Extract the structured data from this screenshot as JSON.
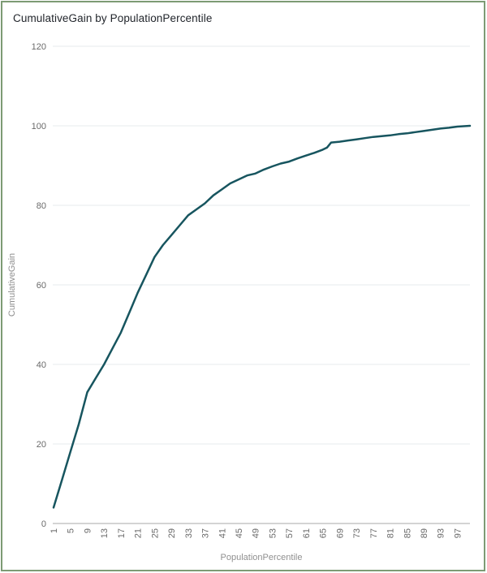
{
  "header": {
    "title": "CumulativeGain by PopulationPercentile"
  },
  "colors": {
    "line": "#17555f",
    "frame_border": "#7d9b74",
    "gridline": "#e7ebee",
    "axis_line": "#a8a8a8",
    "tick_label": "#6a6a6a",
    "axis_title": "#909090",
    "title_text": "#22262c"
  },
  "chart_data": {
    "type": "line",
    "title": "CumulativeGain by PopulationPercentile",
    "xlabel": "PopulationPercentile",
    "ylabel": "CumulativeGain",
    "xlim": [
      1,
      100
    ],
    "ylim": [
      0,
      120
    ],
    "grid": true,
    "legend": "none",
    "x_ticks": [
      1,
      5,
      9,
      13,
      17,
      21,
      25,
      29,
      33,
      37,
      41,
      45,
      49,
      53,
      57,
      61,
      65,
      69,
      73,
      77,
      81,
      85,
      89,
      93,
      97
    ],
    "y_ticks": [
      0,
      20,
      40,
      60,
      80,
      100,
      120
    ],
    "series": [
      {
        "name": "CumulativeGain",
        "color": "#17555f",
        "points": [
          [
            1,
            4
          ],
          [
            3,
            11
          ],
          [
            5,
            18
          ],
          [
            7,
            25
          ],
          [
            9,
            33
          ],
          [
            11,
            36.5
          ],
          [
            13,
            40
          ],
          [
            15,
            44
          ],
          [
            17,
            48
          ],
          [
            19,
            53
          ],
          [
            21,
            58
          ],
          [
            23,
            62.5
          ],
          [
            25,
            67
          ],
          [
            27,
            70
          ],
          [
            29,
            72.5
          ],
          [
            31,
            75
          ],
          [
            33,
            77.5
          ],
          [
            35,
            79
          ],
          [
            37,
            80.5
          ],
          [
            39,
            82.5
          ],
          [
            41,
            84
          ],
          [
            43,
            85.5
          ],
          [
            45,
            86.5
          ],
          [
            47,
            87.5
          ],
          [
            49,
            88
          ],
          [
            51,
            89
          ],
          [
            53,
            89.8
          ],
          [
            55,
            90.5
          ],
          [
            57,
            91
          ],
          [
            59,
            91.8
          ],
          [
            61,
            92.5
          ],
          [
            63,
            93.2
          ],
          [
            65,
            94
          ],
          [
            66,
            94.5
          ],
          [
            67,
            95.8
          ],
          [
            69,
            96
          ],
          [
            71,
            96.3
          ],
          [
            73,
            96.6
          ],
          [
            75,
            96.9
          ],
          [
            77,
            97.2
          ],
          [
            79,
            97.4
          ],
          [
            81,
            97.6
          ],
          [
            83,
            97.9
          ],
          [
            85,
            98.1
          ],
          [
            87,
            98.4
          ],
          [
            89,
            98.7
          ],
          [
            91,
            99
          ],
          [
            93,
            99.3
          ],
          [
            95,
            99.5
          ],
          [
            97,
            99.8
          ],
          [
            100,
            100
          ]
        ]
      }
    ]
  }
}
